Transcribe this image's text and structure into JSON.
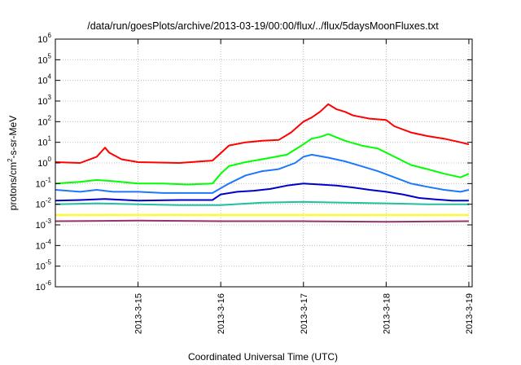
{
  "chart_data": {
    "type": "line",
    "title": "/data/run/goesPlots/archive/2013-03-19/00:00/flux/../flux/5daysMoonFluxes.txt",
    "xlabel": "Coordinated Universal Time (UTC)",
    "ylabel_parts": [
      "protons/cm",
      "2",
      "-s-sr-MeV"
    ],
    "x_ticks": [
      {
        "value": 1,
        "label": "2013-3-15"
      },
      {
        "value": 2,
        "label": "2013-3-16"
      },
      {
        "value": 3,
        "label": "2013-3-17"
      },
      {
        "value": 4,
        "label": "2013-3-18"
      },
      {
        "value": 5,
        "label": "2013-3-19"
      }
    ],
    "xlim": [
      0,
      5.04
    ],
    "y_scale": "log",
    "ylim": [
      1e-06,
      1000000.0
    ],
    "y_ticks": [
      {
        "exp": -6,
        "base": "10",
        "sup": "-6"
      },
      {
        "exp": -5,
        "base": "10",
        "sup": "-5"
      },
      {
        "exp": -4,
        "base": "10",
        "sup": "-4"
      },
      {
        "exp": -3,
        "base": "10",
        "sup": "-3"
      },
      {
        "exp": -2,
        "base": "10",
        "sup": "-2"
      },
      {
        "exp": -1,
        "base": "10",
        "sup": "-1"
      },
      {
        "exp": 0,
        "base": "10",
        "sup": "0"
      },
      {
        "exp": 1,
        "base": "10",
        "sup": "1"
      },
      {
        "exp": 2,
        "base": "10",
        "sup": "2"
      },
      {
        "exp": 3,
        "base": "10",
        "sup": "3"
      },
      {
        "exp": 4,
        "base": "10",
        "sup": "4"
      },
      {
        "exp": 5,
        "base": "10",
        "sup": "5"
      },
      {
        "exp": 6,
        "base": "10",
        "sup": "6"
      }
    ],
    "grid": true,
    "legend": "none",
    "series": [
      {
        "color": "#ff0000",
        "points": [
          [
            0,
            1.1
          ],
          [
            0.3,
            1.0
          ],
          [
            0.5,
            2.0
          ],
          [
            0.6,
            5.5
          ],
          [
            0.65,
            3.2
          ],
          [
            0.8,
            1.5
          ],
          [
            1.0,
            1.1
          ],
          [
            1.5,
            1.0
          ],
          [
            1.9,
            1.3
          ],
          [
            2.0,
            3.0
          ],
          [
            2.1,
            7.0
          ],
          [
            2.3,
            10
          ],
          [
            2.5,
            12
          ],
          [
            2.7,
            13
          ],
          [
            2.85,
            30
          ],
          [
            3.0,
            100
          ],
          [
            3.1,
            160
          ],
          [
            3.2,
            300
          ],
          [
            3.3,
            700
          ],
          [
            3.4,
            400
          ],
          [
            3.5,
            300
          ],
          [
            3.6,
            200
          ],
          [
            3.8,
            140
          ],
          [
            4.0,
            120
          ],
          [
            4.1,
            60
          ],
          [
            4.3,
            30
          ],
          [
            4.5,
            20
          ],
          [
            4.7,
            15
          ],
          [
            4.9,
            10
          ],
          [
            5.0,
            8
          ]
        ]
      },
      {
        "color": "#00ff00",
        "points": [
          [
            0,
            0.1
          ],
          [
            0.3,
            0.12
          ],
          [
            0.5,
            0.15
          ],
          [
            0.7,
            0.13
          ],
          [
            1.0,
            0.1
          ],
          [
            1.3,
            0.1
          ],
          [
            1.6,
            0.09
          ],
          [
            1.9,
            0.1
          ],
          [
            2.0,
            0.3
          ],
          [
            2.1,
            0.7
          ],
          [
            2.3,
            1.1
          ],
          [
            2.5,
            1.5
          ],
          [
            2.8,
            2.5
          ],
          [
            3.0,
            8
          ],
          [
            3.1,
            15
          ],
          [
            3.2,
            18
          ],
          [
            3.3,
            25
          ],
          [
            3.5,
            12
          ],
          [
            3.7,
            7
          ],
          [
            3.9,
            5
          ],
          [
            4.1,
            2
          ],
          [
            4.3,
            0.8
          ],
          [
            4.5,
            0.5
          ],
          [
            4.7,
            0.3
          ],
          [
            4.9,
            0.2
          ],
          [
            5.0,
            0.3
          ]
        ]
      },
      {
        "color": "#1e78ff",
        "points": [
          [
            0,
            0.05
          ],
          [
            0.3,
            0.04
          ],
          [
            0.5,
            0.05
          ],
          [
            0.7,
            0.04
          ],
          [
            1.0,
            0.04
          ],
          [
            1.3,
            0.035
          ],
          [
            1.6,
            0.035
          ],
          [
            1.9,
            0.035
          ],
          [
            2.0,
            0.06
          ],
          [
            2.1,
            0.1
          ],
          [
            2.3,
            0.25
          ],
          [
            2.5,
            0.4
          ],
          [
            2.7,
            0.5
          ],
          [
            2.9,
            1.0
          ],
          [
            3.0,
            2.0
          ],
          [
            3.1,
            2.5
          ],
          [
            3.3,
            1.8
          ],
          [
            3.5,
            1.2
          ],
          [
            3.7,
            0.7
          ],
          [
            3.9,
            0.4
          ],
          [
            4.1,
            0.2
          ],
          [
            4.3,
            0.1
          ],
          [
            4.5,
            0.07
          ],
          [
            4.7,
            0.05
          ],
          [
            4.9,
            0.04
          ],
          [
            5.0,
            0.05
          ]
        ]
      },
      {
        "color": "#0000cc",
        "points": [
          [
            0,
            0.015
          ],
          [
            0.3,
            0.016
          ],
          [
            0.6,
            0.018
          ],
          [
            1.0,
            0.015
          ],
          [
            1.5,
            0.016
          ],
          [
            1.9,
            0.016
          ],
          [
            2.0,
            0.03
          ],
          [
            2.2,
            0.04
          ],
          [
            2.4,
            0.045
          ],
          [
            2.6,
            0.055
          ],
          [
            2.8,
            0.08
          ],
          [
            3.0,
            0.1
          ],
          [
            3.2,
            0.09
          ],
          [
            3.4,
            0.08
          ],
          [
            3.6,
            0.065
          ],
          [
            3.8,
            0.05
          ],
          [
            4.0,
            0.04
          ],
          [
            4.2,
            0.03
          ],
          [
            4.4,
            0.02
          ],
          [
            4.6,
            0.017
          ],
          [
            4.8,
            0.015
          ],
          [
            5.0,
            0.015
          ]
        ]
      },
      {
        "color": "#20c0a0",
        "points": [
          [
            0,
            0.01
          ],
          [
            0.5,
            0.011
          ],
          [
            1.0,
            0.01
          ],
          [
            1.5,
            0.009
          ],
          [
            2.0,
            0.009
          ],
          [
            2.5,
            0.012
          ],
          [
            3.0,
            0.013
          ],
          [
            3.5,
            0.012
          ],
          [
            4.0,
            0.011
          ],
          [
            4.5,
            0.01
          ],
          [
            5.0,
            0.01
          ]
        ]
      },
      {
        "color": "#ffff00",
        "points": [
          [
            0,
            0.003
          ],
          [
            1.0,
            0.003
          ],
          [
            2.0,
            0.003
          ],
          [
            3.0,
            0.003
          ],
          [
            4.0,
            0.003
          ],
          [
            5.0,
            0.003
          ]
        ]
      },
      {
        "color": "#993366",
        "points": [
          [
            0,
            0.0015
          ],
          [
            1.0,
            0.0016
          ],
          [
            2.0,
            0.0015
          ],
          [
            3.0,
            0.0015
          ],
          [
            4.0,
            0.0014
          ],
          [
            5.0,
            0.0015
          ]
        ]
      }
    ]
  }
}
